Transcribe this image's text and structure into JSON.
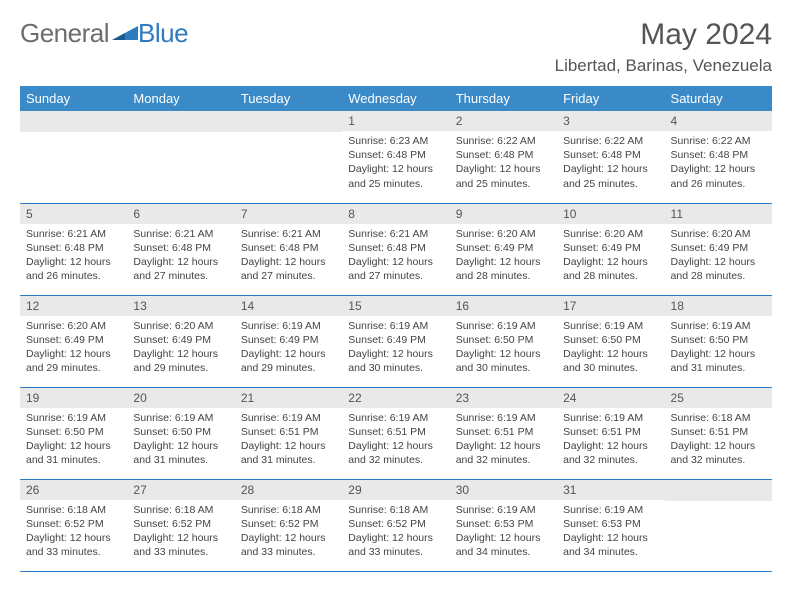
{
  "logo": {
    "word1": "General",
    "word2": "Blue"
  },
  "header": {
    "title": "May 2024",
    "location": "Libertad, Barinas, Venezuela"
  },
  "colors": {
    "header_bg": "#3a8ac8",
    "header_text": "#ffffff",
    "row_divider": "#2f7bbf",
    "daynum_bg": "#e9e9e9",
    "body_bg": "#ffffff",
    "text": "#444444",
    "title_text": "#555555",
    "logo_gray": "#6d6d6d",
    "logo_blue": "#2f7bbf"
  },
  "calendar": {
    "type": "table",
    "columns": [
      "Sunday",
      "Monday",
      "Tuesday",
      "Wednesday",
      "Thursday",
      "Friday",
      "Saturday"
    ],
    "weeks": [
      [
        null,
        null,
        null,
        {
          "d": "1",
          "sr": "6:23 AM",
          "ss": "6:48 PM",
          "dl": "12 hours and 25 minutes."
        },
        {
          "d": "2",
          "sr": "6:22 AM",
          "ss": "6:48 PM",
          "dl": "12 hours and 25 minutes."
        },
        {
          "d": "3",
          "sr": "6:22 AM",
          "ss": "6:48 PM",
          "dl": "12 hours and 25 minutes."
        },
        {
          "d": "4",
          "sr": "6:22 AM",
          "ss": "6:48 PM",
          "dl": "12 hours and 26 minutes."
        }
      ],
      [
        {
          "d": "5",
          "sr": "6:21 AM",
          "ss": "6:48 PM",
          "dl": "12 hours and 26 minutes."
        },
        {
          "d": "6",
          "sr": "6:21 AM",
          "ss": "6:48 PM",
          "dl": "12 hours and 27 minutes."
        },
        {
          "d": "7",
          "sr": "6:21 AM",
          "ss": "6:48 PM",
          "dl": "12 hours and 27 minutes."
        },
        {
          "d": "8",
          "sr": "6:21 AM",
          "ss": "6:48 PM",
          "dl": "12 hours and 27 minutes."
        },
        {
          "d": "9",
          "sr": "6:20 AM",
          "ss": "6:49 PM",
          "dl": "12 hours and 28 minutes."
        },
        {
          "d": "10",
          "sr": "6:20 AM",
          "ss": "6:49 PM",
          "dl": "12 hours and 28 minutes."
        },
        {
          "d": "11",
          "sr": "6:20 AM",
          "ss": "6:49 PM",
          "dl": "12 hours and 28 minutes."
        }
      ],
      [
        {
          "d": "12",
          "sr": "6:20 AM",
          "ss": "6:49 PM",
          "dl": "12 hours and 29 minutes."
        },
        {
          "d": "13",
          "sr": "6:20 AM",
          "ss": "6:49 PM",
          "dl": "12 hours and 29 minutes."
        },
        {
          "d": "14",
          "sr": "6:19 AM",
          "ss": "6:49 PM",
          "dl": "12 hours and 29 minutes."
        },
        {
          "d": "15",
          "sr": "6:19 AM",
          "ss": "6:49 PM",
          "dl": "12 hours and 30 minutes."
        },
        {
          "d": "16",
          "sr": "6:19 AM",
          "ss": "6:50 PM",
          "dl": "12 hours and 30 minutes."
        },
        {
          "d": "17",
          "sr": "6:19 AM",
          "ss": "6:50 PM",
          "dl": "12 hours and 30 minutes."
        },
        {
          "d": "18",
          "sr": "6:19 AM",
          "ss": "6:50 PM",
          "dl": "12 hours and 31 minutes."
        }
      ],
      [
        {
          "d": "19",
          "sr": "6:19 AM",
          "ss": "6:50 PM",
          "dl": "12 hours and 31 minutes."
        },
        {
          "d": "20",
          "sr": "6:19 AM",
          "ss": "6:50 PM",
          "dl": "12 hours and 31 minutes."
        },
        {
          "d": "21",
          "sr": "6:19 AM",
          "ss": "6:51 PM",
          "dl": "12 hours and 31 minutes."
        },
        {
          "d": "22",
          "sr": "6:19 AM",
          "ss": "6:51 PM",
          "dl": "12 hours and 32 minutes."
        },
        {
          "d": "23",
          "sr": "6:19 AM",
          "ss": "6:51 PM",
          "dl": "12 hours and 32 minutes."
        },
        {
          "d": "24",
          "sr": "6:19 AM",
          "ss": "6:51 PM",
          "dl": "12 hours and 32 minutes."
        },
        {
          "d": "25",
          "sr": "6:18 AM",
          "ss": "6:51 PM",
          "dl": "12 hours and 32 minutes."
        }
      ],
      [
        {
          "d": "26",
          "sr": "6:18 AM",
          "ss": "6:52 PM",
          "dl": "12 hours and 33 minutes."
        },
        {
          "d": "27",
          "sr": "6:18 AM",
          "ss": "6:52 PM",
          "dl": "12 hours and 33 minutes."
        },
        {
          "d": "28",
          "sr": "6:18 AM",
          "ss": "6:52 PM",
          "dl": "12 hours and 33 minutes."
        },
        {
          "d": "29",
          "sr": "6:18 AM",
          "ss": "6:52 PM",
          "dl": "12 hours and 33 minutes."
        },
        {
          "d": "30",
          "sr": "6:19 AM",
          "ss": "6:53 PM",
          "dl": "12 hours and 34 minutes."
        },
        {
          "d": "31",
          "sr": "6:19 AM",
          "ss": "6:53 PM",
          "dl": "12 hours and 34 minutes."
        },
        null
      ]
    ],
    "labels": {
      "sunrise": "Sunrise:",
      "sunset": "Sunset:",
      "daylight": "Daylight:"
    }
  }
}
